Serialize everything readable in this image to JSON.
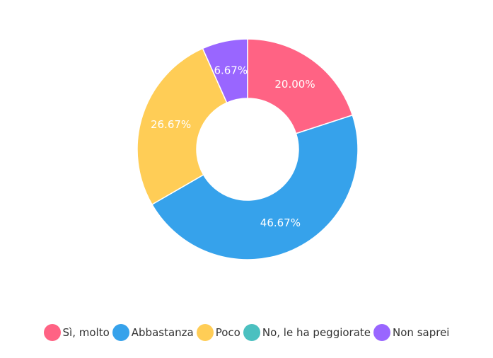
{
  "chart_data": {
    "type": "pie",
    "variant": "doughnut",
    "title": "",
    "categories": [
      "Sì, molto",
      "Abbastanza",
      "Poco",
      "No, le ha peggiorate",
      "Non saprei"
    ],
    "values": [
      20.0,
      46.67,
      26.67,
      0,
      6.67
    ],
    "value_labels": [
      "20.00%",
      "46.67%",
      "26.67%",
      "",
      "6.67%"
    ],
    "colors": [
      "#ff6384",
      "#36a2eb",
      "#ffcd56",
      "#4bc0c0",
      "#9966ff"
    ],
    "legend_position": "bottom",
    "start_angle_deg": -90,
    "direction": "clockwise"
  },
  "legend": {
    "items": [
      {
        "label": "Sì, molto",
        "color": "#ff6384"
      },
      {
        "label": "Abbastanza",
        "color": "#36a2eb"
      },
      {
        "label": "Poco",
        "color": "#ffcd56"
      },
      {
        "label": "No, le ha peggiorate",
        "color": "#4bc0c0"
      },
      {
        "label": "Non saprei",
        "color": "#9966ff"
      }
    ]
  }
}
